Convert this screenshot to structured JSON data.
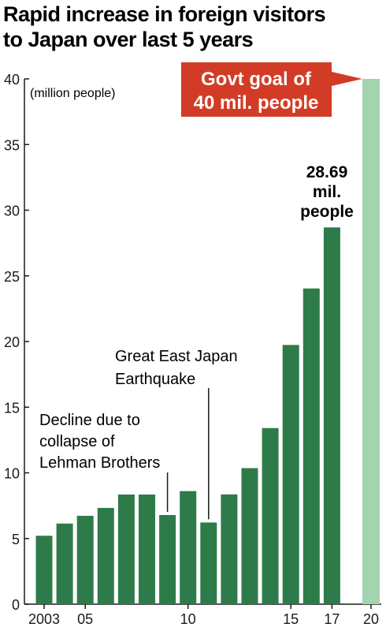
{
  "chart_data": {
    "type": "bar",
    "title": [
      "Rapid increase in foreign visitors",
      "to Japan over last 5 years"
    ],
    "unit_label": "(million people)",
    "ylim": [
      0,
      40
    ],
    "yticks": [
      0,
      5,
      10,
      15,
      20,
      25,
      30,
      35,
      40
    ],
    "categories": [
      2003,
      2004,
      2005,
      2006,
      2007,
      2008,
      2009,
      2010,
      2011,
      2012,
      2013,
      2014,
      2015,
      2016,
      2017
    ],
    "values": [
      5.21,
      6.14,
      6.73,
      7.33,
      8.35,
      8.35,
      6.79,
      8.61,
      6.22,
      8.36,
      10.36,
      13.41,
      19.74,
      24.04,
      28.69
    ],
    "x_tick_labels": [
      {
        "x": 2003,
        "label": "2003"
      },
      {
        "x": 2005,
        "label": "05"
      },
      {
        "x": 2010,
        "label": "10"
      },
      {
        "x": 2015,
        "label": "15"
      },
      {
        "x": 2017,
        "label": "17"
      },
      {
        "x": 2020,
        "label": "20"
      }
    ],
    "bar_color": "#2e7b4a",
    "goal": {
      "x": 2020,
      "value": 40,
      "label": [
        "Govt goal of",
        "40 mil. people"
      ],
      "bar_color": "#a3d4b0",
      "box_color": "#d23c26"
    },
    "value_label": {
      "x": 2017,
      "text": [
        "28.69",
        "mil.",
        "people"
      ]
    },
    "annotations": [
      {
        "x": 2009,
        "text": [
          "Decline due to",
          "collapse of",
          "Lehman Brothers"
        ]
      },
      {
        "x": 2011,
        "text": [
          "Great East Japan",
          "Earthquake"
        ]
      }
    ],
    "axis_color": "#1a1a1a",
    "text_color": "#1a1a1a"
  }
}
